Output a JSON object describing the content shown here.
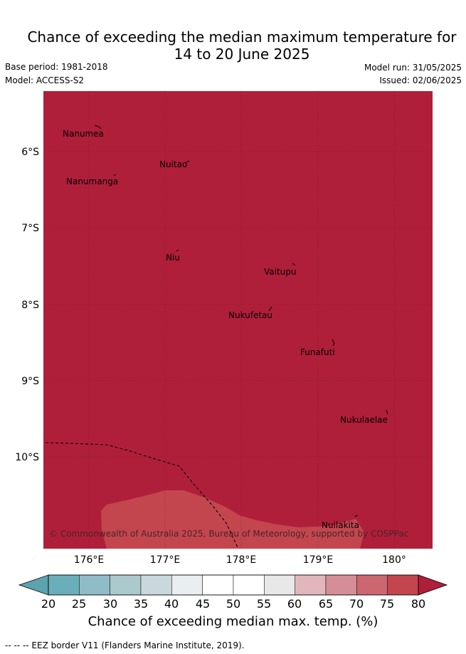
{
  "header": {
    "title_line1": "Chance of exceeding the median maximum temperature for",
    "title_line2": "14 to 20 June 2025",
    "base_period": "Base period: 1981-2018",
    "model": "Model: ACCESS-S2",
    "model_run": "Model run: 31/05/2025",
    "issued": "Issued: 02/06/2025"
  },
  "map": {
    "lat_labels": [
      "6°S",
      "7°S",
      "8°S",
      "9°S",
      "10°S"
    ],
    "lon_labels": [
      "176°E",
      "177°E",
      "178°E",
      "179°E",
      "180°"
    ],
    "places": [
      "Nanumea",
      "Nuitao",
      "Nanumanga",
      "Niu",
      "Vaitupu",
      "Nukufetau",
      "Funafuti",
      "Nukulaelae",
      "Nuilakita"
    ],
    "copyright": "© Commonwealth of Australia 2025, Bureau of Meteorology, supported by COSPPac",
    "colors": {
      "dominant_category": "#b01f3a",
      "lower_category": "#c3464f"
    }
  },
  "colorbar": {
    "ticks": [
      "20",
      "25",
      "30",
      "35",
      "40",
      "45",
      "50",
      "55",
      "60",
      "65",
      "70",
      "75",
      "80"
    ],
    "colors": [
      "#6aaeb9",
      "#8fbcc6",
      "#acc9cd",
      "#c8d8dc",
      "#e9eff1",
      "#ffffff",
      "#ffffff",
      "#e8e8e8",
      "#e2b6bd",
      "#d68e96",
      "#cc6770",
      "#c3464f"
    ],
    "under_color": "#5ba3ad",
    "over_color": "#b01f3a",
    "label": "Chance of exceeding median max. temp. (%)"
  },
  "footnote": "--  --  -- EEZ border V11 (Flanders Marine Institute, 2019)."
}
